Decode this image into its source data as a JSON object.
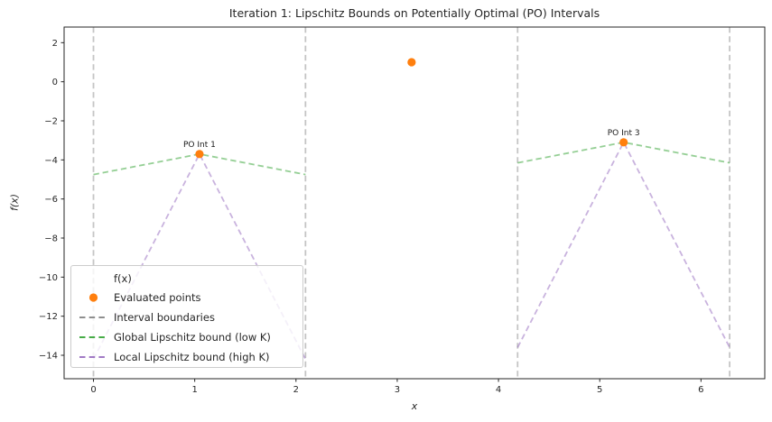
{
  "figure": {
    "title": "Iteration 1: Lipschitz Bounds on Potentially Optimal (PO) Intervals",
    "xlabel": "x",
    "ylabel": "f(x)"
  },
  "colors": {
    "evaluated_points": "#ff7f0e",
    "interval_boundaries": "#7f7f7f",
    "global_bound": "#2ca02c",
    "local_bound": "#9467bd",
    "axis": "#262626"
  },
  "legend": {
    "title": "f(x)",
    "items": [
      {
        "label": "Evaluated points",
        "swatch": "marker",
        "color": "#ff7f0e"
      },
      {
        "label": "Interval boundaries",
        "swatch": "dashed",
        "color": "#7f7f7f"
      },
      {
        "label": "Global Lipschitz bound (low K)",
        "swatch": "dashed",
        "color": "#2ca02c"
      },
      {
        "label": "Local Lipschitz bound (high K)",
        "swatch": "dashed",
        "color": "#9467bd"
      }
    ]
  },
  "chart_data": {
    "type": "line",
    "title": "Iteration 1: Lipschitz Bounds on Potentially Optimal (PO) Intervals",
    "xlabel": "x",
    "ylabel": "f(x)",
    "xlim": [
      -0.29,
      6.63
    ],
    "ylim": [
      -15.2,
      2.8
    ],
    "x_ticks": [
      0,
      1,
      2,
      3,
      4,
      5,
      6
    ],
    "y_ticks": [
      2,
      0,
      -2,
      -4,
      -6,
      -8,
      -10,
      -12,
      -14
    ],
    "grid": false,
    "legend_position": "lower left",
    "evaluated_points": [
      {
        "x": 1.047,
        "y": -3.7
      },
      {
        "x": 3.142,
        "y": 1.0
      },
      {
        "x": 5.236,
        "y": -3.1
      }
    ],
    "interval_boundaries_x": [
      0.0,
      2.094,
      4.189,
      6.283
    ],
    "global_lipschitz_bound_segments": [
      [
        [
          0.0,
          -4.75
        ],
        [
          1.047,
          -3.7
        ],
        [
          2.094,
          -4.75
        ]
      ],
      [
        [
          4.189,
          -4.15
        ],
        [
          5.236,
          -3.1
        ],
        [
          6.283,
          -4.15
        ]
      ]
    ],
    "local_lipschitz_bound_segments": [
      [
        [
          0.0,
          -14.2
        ],
        [
          1.047,
          -3.7
        ],
        [
          2.094,
          -14.2
        ]
      ],
      [
        [
          4.189,
          -13.6
        ],
        [
          5.236,
          -3.1
        ],
        [
          6.283,
          -13.6
        ]
      ]
    ],
    "annotations": [
      {
        "text": "PO Int 1",
        "x": 1.047,
        "y": -3.7
      },
      {
        "text": "PO Int 3",
        "x": 5.236,
        "y": -3.1
      }
    ]
  }
}
